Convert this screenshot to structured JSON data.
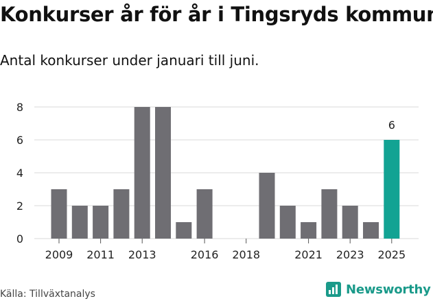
{
  "header": {
    "title": "Konkurser år för år i Tingsryds kommun",
    "subtitle": "Antal konkurser under januari till juni."
  },
  "footer": {
    "source": "Källa: Tillväxtanalys",
    "brand": "Newsworthy"
  },
  "colors": {
    "bar": "#6f6e73",
    "highlight": "#12a393",
    "grid": "#d9d9d9",
    "brand": "#1a9a8a"
  },
  "chart_data": {
    "type": "bar",
    "categories": [
      "2009",
      "2010",
      "2011",
      "2012",
      "2013",
      "2014",
      "2015",
      "2016",
      "2017",
      "2018",
      "2019",
      "2020",
      "2021",
      "2022",
      "2023",
      "2024",
      "2025"
    ],
    "values": [
      3,
      2,
      2,
      3,
      8,
      8,
      1,
      3,
      0,
      0,
      4,
      2,
      1,
      3,
      2,
      1,
      6
    ],
    "highlight_category": "2025",
    "highlight_label": "6",
    "xtick_labels": [
      "2009",
      "2011",
      "2013",
      "2016",
      "2018",
      "2021",
      "2023",
      "2025"
    ],
    "yticks": [
      0,
      2,
      4,
      6,
      8
    ],
    "ylim": [
      0,
      8
    ],
    "grid": true,
    "legend": "none"
  }
}
